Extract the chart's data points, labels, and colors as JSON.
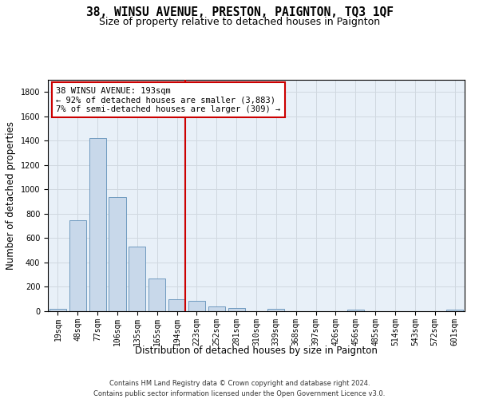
{
  "title": "38, WINSU AVENUE, PRESTON, PAIGNTON, TQ3 1QF",
  "subtitle": "Size of property relative to detached houses in Paignton",
  "xlabel": "Distribution of detached houses by size in Paignton",
  "ylabel": "Number of detached properties",
  "categories": [
    "19sqm",
    "48sqm",
    "77sqm",
    "106sqm",
    "135sqm",
    "165sqm",
    "194sqm",
    "223sqm",
    "252sqm",
    "281sqm",
    "310sqm",
    "339sqm",
    "368sqm",
    "397sqm",
    "426sqm",
    "456sqm",
    "485sqm",
    "514sqm",
    "543sqm",
    "572sqm",
    "601sqm"
  ],
  "values": [
    22,
    745,
    1420,
    935,
    530,
    270,
    100,
    88,
    42,
    28,
    0,
    18,
    0,
    0,
    0,
    10,
    0,
    0,
    0,
    0,
    10
  ],
  "bar_color": "#c8d8ea",
  "bar_edge_color": "#6090b8",
  "annotation_text": "38 WINSU AVENUE: 193sqm\n← 92% of detached houses are smaller (3,883)\n7% of semi-detached houses are larger (309) →",
  "annotation_box_color": "#ffffff",
  "annotation_box_edge_color": "#cc0000",
  "vline_color": "#cc0000",
  "vline_x_index": 6,
  "grid_color": "#d0d8e0",
  "background_color": "#e8f0f8",
  "ylim": [
    0,
    1900
  ],
  "yticks": [
    0,
    200,
    400,
    600,
    800,
    1000,
    1200,
    1400,
    1600,
    1800
  ],
  "footer": "Contains HM Land Registry data © Crown copyright and database right 2024.\nContains public sector information licensed under the Open Government Licence v3.0.",
  "title_fontsize": 10.5,
  "subtitle_fontsize": 9,
  "xlabel_fontsize": 8.5,
  "ylabel_fontsize": 8.5,
  "tick_fontsize": 7,
  "annotation_fontsize": 7.5,
  "footer_fontsize": 6
}
